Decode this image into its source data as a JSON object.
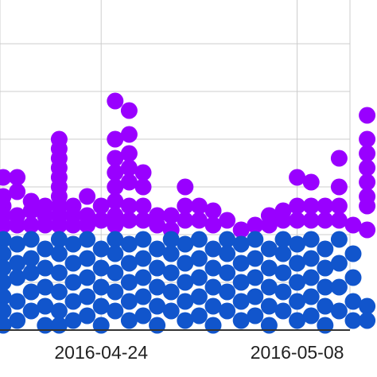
{
  "chart_data": {
    "type": "scatter",
    "title": "",
    "xlabel": "",
    "ylabel": "",
    "grid": true,
    "legend": "none",
    "x_tick_labels": [
      "2016-04-24",
      "2016-05-08"
    ],
    "colors": {
      "upper": "#9900ff",
      "lower": "#1155cc",
      "grid": "#cccccc",
      "axis": "#333333"
    },
    "y_divider_level": 2,
    "series": [
      {
        "color": "#9900ff",
        "points": [
          [
            "2016-04-17",
            3.2
          ],
          [
            "2016-04-17",
            2.8
          ],
          [
            "2016-04-17",
            2.6
          ],
          [
            "2016-04-17",
            2.4
          ],
          [
            "2016-04-17",
            2.2
          ],
          [
            "2016-04-18",
            3.2
          ],
          [
            "2016-04-18",
            2.9
          ],
          [
            "2016-04-18",
            2.4
          ],
          [
            "2016-04-18",
            2.2
          ],
          [
            "2016-04-19",
            2.7
          ],
          [
            "2016-04-19",
            2.5
          ],
          [
            "2016-04-19",
            2.2
          ],
          [
            "2016-04-20",
            2.6
          ],
          [
            "2016-04-20",
            2.4
          ],
          [
            "2016-04-20",
            2.2
          ],
          [
            "2016-04-21",
            4.0
          ],
          [
            "2016-04-21",
            3.8
          ],
          [
            "2016-04-21",
            3.6
          ],
          [
            "2016-04-21",
            3.4
          ],
          [
            "2016-04-21",
            3.2
          ],
          [
            "2016-04-21",
            3.0
          ],
          [
            "2016-04-21",
            2.8
          ],
          [
            "2016-04-21",
            2.6
          ],
          [
            "2016-04-21",
            2.4
          ],
          [
            "2016-04-21",
            2.2
          ],
          [
            "2016-04-22",
            2.6
          ],
          [
            "2016-04-22",
            2.4
          ],
          [
            "2016-04-22",
            2.2
          ],
          [
            "2016-04-23",
            2.8
          ],
          [
            "2016-04-23",
            2.4
          ],
          [
            "2016-04-23",
            2.2
          ],
          [
            "2016-04-24",
            2.6
          ],
          [
            "2016-04-24",
            2.3
          ],
          [
            "2016-04-25",
            4.8
          ],
          [
            "2016-04-25",
            4.0
          ],
          [
            "2016-04-25",
            3.6
          ],
          [
            "2016-04-25",
            3.3
          ],
          [
            "2016-04-25",
            3.0
          ],
          [
            "2016-04-25",
            2.7
          ],
          [
            "2016-04-25",
            2.4
          ],
          [
            "2016-04-25",
            2.2
          ],
          [
            "2016-04-26",
            4.6
          ],
          [
            "2016-04-26",
            4.1
          ],
          [
            "2016-04-26",
            3.7
          ],
          [
            "2016-04-26",
            3.4
          ],
          [
            "2016-04-26",
            3.1
          ],
          [
            "2016-04-26",
            2.6
          ],
          [
            "2016-04-26",
            2.3
          ],
          [
            "2016-04-27",
            3.3
          ],
          [
            "2016-04-27",
            3.0
          ],
          [
            "2016-04-27",
            2.6
          ],
          [
            "2016-04-27",
            2.3
          ],
          [
            "2016-04-28",
            2.4
          ],
          [
            "2016-04-28",
            2.2
          ],
          [
            "2016-04-29",
            2.4
          ],
          [
            "2016-04-29",
            2.1
          ],
          [
            "2016-04-30",
            3.0
          ],
          [
            "2016-04-30",
            2.6
          ],
          [
            "2016-04-30",
            2.3
          ],
          [
            "2016-05-01",
            2.6
          ],
          [
            "2016-05-01",
            2.3
          ],
          [
            "2016-05-02",
            2.5
          ],
          [
            "2016-05-02",
            2.2
          ],
          [
            "2016-05-03",
            2.3
          ],
          [
            "2016-05-04",
            2.1
          ],
          [
            "2016-05-05",
            2.2
          ],
          [
            "2016-05-06",
            2.4
          ],
          [
            "2016-05-06",
            2.2
          ],
          [
            "2016-05-07",
            2.5
          ],
          [
            "2016-05-07",
            2.3
          ],
          [
            "2016-05-08",
            3.2
          ],
          [
            "2016-05-08",
            2.6
          ],
          [
            "2016-05-08",
            2.3
          ],
          [
            "2016-05-09",
            3.1
          ],
          [
            "2016-05-09",
            2.6
          ],
          [
            "2016-05-09",
            2.3
          ],
          [
            "2016-05-10",
            2.6
          ],
          [
            "2016-05-10",
            2.3
          ],
          [
            "2016-05-11",
            3.6
          ],
          [
            "2016-05-11",
            3.0
          ],
          [
            "2016-05-11",
            2.6
          ],
          [
            "2016-05-11",
            2.3
          ],
          [
            "2016-05-12",
            2.2
          ],
          [
            "2016-05-13",
            4.5
          ],
          [
            "2016-05-13",
            4.0
          ],
          [
            "2016-05-13",
            3.7
          ],
          [
            "2016-05-13",
            3.4
          ],
          [
            "2016-05-13",
            3.1
          ],
          [
            "2016-05-13",
            2.8
          ],
          [
            "2016-05-13",
            2.6
          ],
          [
            "2016-05-13",
            2.1
          ]
        ]
      },
      {
        "color": "#1155cc",
        "points": [
          [
            "2016-04-17",
            1.9
          ],
          [
            "2016-04-17",
            1.6
          ],
          [
            "2016-04-17",
            1.3
          ],
          [
            "2016-04-17",
            1.0
          ],
          [
            "2016-04-17",
            0.7
          ],
          [
            "2016-04-17",
            0.4
          ],
          [
            "2016-04-17",
            0.1
          ],
          [
            "2016-04-18",
            1.8
          ],
          [
            "2016-04-18",
            1.4
          ],
          [
            "2016-04-18",
            1.1
          ],
          [
            "2016-04-18",
            0.6
          ],
          [
            "2016-04-18",
            0.2
          ],
          [
            "2016-04-19",
            1.9
          ],
          [
            "2016-04-19",
            1.5
          ],
          [
            "2016-04-19",
            1.2
          ],
          [
            "2016-04-19",
            0.8
          ],
          [
            "2016-04-19",
            0.4
          ],
          [
            "2016-04-20",
            1.7
          ],
          [
            "2016-04-20",
            1.3
          ],
          [
            "2016-04-20",
            0.9
          ],
          [
            "2016-04-20",
            0.5
          ],
          [
            "2016-04-20",
            0.1
          ],
          [
            "2016-04-21",
            1.9
          ],
          [
            "2016-04-21",
            1.6
          ],
          [
            "2016-04-21",
            1.2
          ],
          [
            "2016-04-21",
            0.8
          ],
          [
            "2016-04-21",
            0.4
          ],
          [
            "2016-04-21",
            0.1
          ],
          [
            "2016-04-22",
            1.8
          ],
          [
            "2016-04-22",
            1.4
          ],
          [
            "2016-04-22",
            1.0
          ],
          [
            "2016-04-22",
            0.6
          ],
          [
            "2016-04-22",
            0.2
          ],
          [
            "2016-04-23",
            1.9
          ],
          [
            "2016-04-23",
            1.5
          ],
          [
            "2016-04-23",
            1.1
          ],
          [
            "2016-04-23",
            0.7
          ],
          [
            "2016-04-23",
            0.3
          ],
          [
            "2016-04-24",
            1.7
          ],
          [
            "2016-04-24",
            1.3
          ],
          [
            "2016-04-24",
            0.9
          ],
          [
            "2016-04-24",
            0.5
          ],
          [
            "2016-04-24",
            0.1
          ],
          [
            "2016-04-25",
            1.9
          ],
          [
            "2016-04-25",
            1.6
          ],
          [
            "2016-04-25",
            1.2
          ],
          [
            "2016-04-25",
            0.8
          ],
          [
            "2016-04-25",
            0.4
          ],
          [
            "2016-04-26",
            1.8
          ],
          [
            "2016-04-26",
            1.4
          ],
          [
            "2016-04-26",
            1.0
          ],
          [
            "2016-04-26",
            0.6
          ],
          [
            "2016-04-26",
            0.2
          ],
          [
            "2016-04-27",
            1.9
          ],
          [
            "2016-04-27",
            1.5
          ],
          [
            "2016-04-27",
            1.1
          ],
          [
            "2016-04-27",
            0.7
          ],
          [
            "2016-04-27",
            0.3
          ],
          [
            "2016-04-28",
            1.7
          ],
          [
            "2016-04-28",
            1.3
          ],
          [
            "2016-04-28",
            0.9
          ],
          [
            "2016-04-28",
            0.5
          ],
          [
            "2016-04-28",
            0.1
          ],
          [
            "2016-04-29",
            1.9
          ],
          [
            "2016-04-29",
            1.6
          ],
          [
            "2016-04-29",
            1.2
          ],
          [
            "2016-04-29",
            0.8
          ],
          [
            "2016-04-29",
            0.4
          ],
          [
            "2016-04-30",
            1.8
          ],
          [
            "2016-04-30",
            1.4
          ],
          [
            "2016-04-30",
            1.0
          ],
          [
            "2016-04-30",
            0.6
          ],
          [
            "2016-04-30",
            0.2
          ],
          [
            "2016-05-01",
            1.9
          ],
          [
            "2016-05-01",
            1.5
          ],
          [
            "2016-05-01",
            1.1
          ],
          [
            "2016-05-01",
            0.7
          ],
          [
            "2016-05-01",
            0.3
          ],
          [
            "2016-05-02",
            1.7
          ],
          [
            "2016-05-02",
            1.3
          ],
          [
            "2016-05-02",
            0.9
          ],
          [
            "2016-05-02",
            0.5
          ],
          [
            "2016-05-02",
            0.1
          ],
          [
            "2016-05-03",
            1.9
          ],
          [
            "2016-05-03",
            1.6
          ],
          [
            "2016-05-03",
            1.2
          ],
          [
            "2016-05-03",
            0.8
          ],
          [
            "2016-05-03",
            0.4
          ],
          [
            "2016-05-04",
            1.8
          ],
          [
            "2016-05-04",
            1.4
          ],
          [
            "2016-05-04",
            1.0
          ],
          [
            "2016-05-04",
            0.6
          ],
          [
            "2016-05-04",
            0.2
          ],
          [
            "2016-05-05",
            1.9
          ],
          [
            "2016-05-05",
            1.5
          ],
          [
            "2016-05-05",
            1.1
          ],
          [
            "2016-05-05",
            0.7
          ],
          [
            "2016-05-05",
            0.3
          ],
          [
            "2016-05-06",
            1.7
          ],
          [
            "2016-05-06",
            1.3
          ],
          [
            "2016-05-06",
            0.9
          ],
          [
            "2016-05-06",
            0.5
          ],
          [
            "2016-05-06",
            0.1
          ],
          [
            "2016-05-07",
            1.9
          ],
          [
            "2016-05-07",
            1.6
          ],
          [
            "2016-05-07",
            1.2
          ],
          [
            "2016-05-07",
            0.8
          ],
          [
            "2016-05-07",
            0.4
          ],
          [
            "2016-05-08",
            1.8
          ],
          [
            "2016-05-08",
            1.4
          ],
          [
            "2016-05-08",
            1.0
          ],
          [
            "2016-05-08",
            0.6
          ],
          [
            "2016-05-08",
            0.2
          ],
          [
            "2016-05-09",
            1.9
          ],
          [
            "2016-05-09",
            1.5
          ],
          [
            "2016-05-09",
            1.1
          ],
          [
            "2016-05-09",
            0.7
          ],
          [
            "2016-05-09",
            0.3
          ],
          [
            "2016-05-10",
            1.7
          ],
          [
            "2016-05-10",
            1.3
          ],
          [
            "2016-05-10",
            0.9
          ],
          [
            "2016-05-10",
            0.5
          ],
          [
            "2016-05-10",
            0.1
          ],
          [
            "2016-05-11",
            1.9
          ],
          [
            "2016-05-11",
            1.4
          ],
          [
            "2016-05-11",
            0.9
          ],
          [
            "2016-05-11",
            0.4
          ],
          [
            "2016-05-12",
            1.6
          ],
          [
            "2016-05-12",
            1.1
          ],
          [
            "2016-05-12",
            0.6
          ],
          [
            "2016-05-12",
            0.2
          ],
          [
            "2016-05-13",
            0.5
          ],
          [
            "2016-05-13",
            0.2
          ]
        ]
      }
    ]
  }
}
